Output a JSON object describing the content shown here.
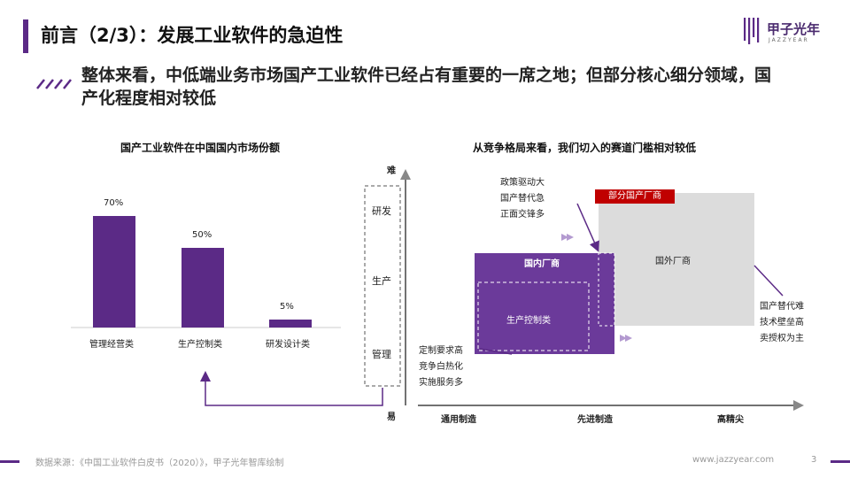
{
  "header": {
    "title": "前言（2/3）：发展工业软件的急迫性",
    "logo_text": "甲子光年",
    "logo_sub": "JAZZYEAR",
    "accent_color": "#5b2a86"
  },
  "subtitle": "整体来看，中低端业务市场国产工业软件已经占有重要的一席之地；但部分核心细分领域，国产化程度相对较低",
  "left_chart": {
    "chart_data": {
      "type": "bar",
      "title": "国产工业软件在中国国内市场份额",
      "categories": [
        "管理经营类",
        "生产控制类",
        "研发设计类"
      ],
      "values": [
        70,
        50,
        5
      ],
      "value_labels": [
        "70%",
        "50%",
        "5%"
      ],
      "ylim": [
        0,
        100
      ],
      "color": "#5b2a86",
      "grid": false
    }
  },
  "axis": {
    "top": "难",
    "bottom": "易",
    "boxes": [
      "研发",
      "生产",
      "管理"
    ]
  },
  "right_chart": {
    "title": "从竞争格局来看，我们切入的赛道门槛相对较低",
    "x_labels": [
      "通用制造",
      "先进制造",
      "高精尖"
    ],
    "domestic_label": "国内厂商",
    "foreign_label": "国外厂商",
    "inner_label": "生产控制类",
    "tag": "部分国产厂商",
    "top_notes": [
      "政策驱动大",
      "国产替代急",
      "正面交锋多"
    ],
    "left_notes": [
      "定制要求高",
      "竞争白热化",
      "实施服务多"
    ],
    "right_notes": [
      "国产替代难",
      "技术壁垒高",
      "卖授权为主"
    ]
  },
  "footer": {
    "source": "数据来源：《中国工业软件白皮书（2020）》，甲子光年智库绘制",
    "url": "www.jazzyear.com",
    "page": "3"
  }
}
